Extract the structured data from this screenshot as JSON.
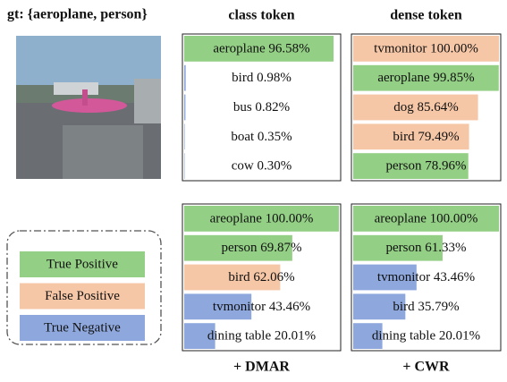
{
  "caption": "gt: {aeroplane, person}",
  "legend": [
    {
      "label": "True Positive",
      "color": "#93cf84"
    },
    {
      "label": "False Positive",
      "color": "#f6c7a6"
    },
    {
      "label": "True Negative",
      "color": "#8ea8de"
    }
  ],
  "chart_data": [
    {
      "type": "bar",
      "title": "class token",
      "xlim": [
        0,
        100
      ],
      "categories": [
        "aeroplane",
        "bird",
        "bus",
        "boat",
        "cow"
      ],
      "values": [
        96.58,
        0.98,
        0.82,
        0.35,
        0.3
      ],
      "value_labels": [
        "96.58%",
        "0.98%",
        "0.82%",
        "0.35%",
        "0.30%"
      ],
      "colors": [
        "#93cf84",
        "#8ea8de",
        "#8ea8de",
        "#8ea8de",
        "#8ea8de"
      ]
    },
    {
      "type": "bar",
      "title": "dense token",
      "xlim": [
        0,
        100
      ],
      "categories": [
        "tvmonitor",
        "aeroplane",
        "dog",
        "bird",
        "person"
      ],
      "values": [
        100.0,
        99.85,
        85.64,
        79.49,
        78.96
      ],
      "value_labels": [
        "100.00%",
        "99.85%",
        "85.64%",
        "79.49%",
        "78.96%"
      ],
      "colors": [
        "#f6c7a6",
        "#93cf84",
        "#f6c7a6",
        "#f6c7a6",
        "#93cf84"
      ]
    },
    {
      "type": "bar",
      "title": "+ DMAR",
      "xlim": [
        0,
        100
      ],
      "categories": [
        "areoplane",
        "person",
        "bird",
        "tvmonitor",
        "dining table"
      ],
      "values": [
        100.0,
        69.87,
        62.06,
        43.46,
        20.01
      ],
      "value_labels": [
        "100.00%",
        "69.87%",
        "62.06%",
        "43.46%",
        "20.01%"
      ],
      "colors": [
        "#93cf84",
        "#93cf84",
        "#f6c7a6",
        "#8ea8de",
        "#8ea8de"
      ]
    },
    {
      "type": "bar",
      "title": "+ CWR",
      "xlim": [
        0,
        100
      ],
      "categories": [
        "areoplane",
        "person",
        "tvmonitor",
        "bird",
        "dining table"
      ],
      "values": [
        100.0,
        61.33,
        43.46,
        35.79,
        20.01
      ],
      "value_labels": [
        "100.00%",
        "61.33%",
        "43.46%",
        "35.79%",
        "20.01%"
      ],
      "colors": [
        "#93cf84",
        "#93cf84",
        "#8ea8de",
        "#8ea8de",
        "#8ea8de"
      ]
    }
  ]
}
